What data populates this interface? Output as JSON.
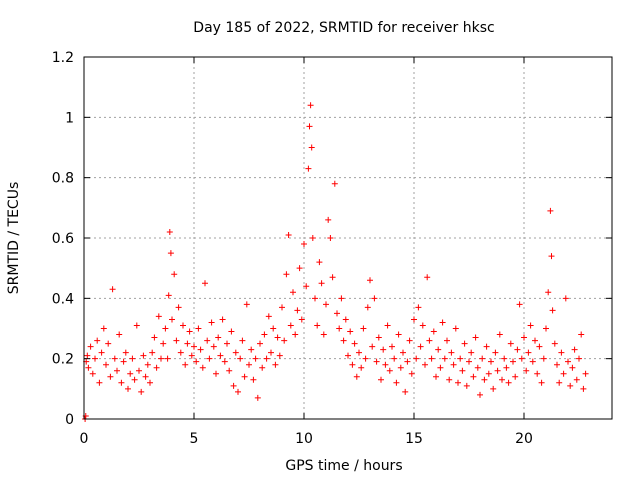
{
  "chart_data": {
    "type": "scatter",
    "title": "Day 185 of 2022, SRMTID for receiver hksc",
    "xlabel": "GPS time / hours",
    "ylabel": "SRMTID / TECUs",
    "xlim": [
      0,
      24
    ],
    "ylim": [
      0,
      1.2
    ],
    "xticks": [
      0,
      5,
      10,
      15,
      20
    ],
    "xtick_labels": [
      "0",
      "5",
      "10",
      "15",
      "20"
    ],
    "yticks": [
      0,
      0.2,
      0.4,
      0.6,
      0.8,
      1.0,
      1.2
    ],
    "ytick_labels": [
      "0",
      "0.2",
      "0.4",
      "0.6",
      "0.8",
      "1",
      "1.2"
    ],
    "grid": true,
    "marker": "plus",
    "series": [
      {
        "name": "SRMTID",
        "color": "#ff0000",
        "points": [
          [
            0.05,
            0.0
          ],
          [
            0.08,
            0.01
          ],
          [
            0.1,
            0.19
          ],
          [
            0.15,
            0.21
          ],
          [
            0.2,
            0.17
          ],
          [
            0.3,
            0.24
          ],
          [
            0.4,
            0.15
          ],
          [
            0.5,
            0.2
          ],
          [
            0.6,
            0.26
          ],
          [
            0.7,
            0.12
          ],
          [
            0.8,
            0.22
          ],
          [
            0.9,
            0.3
          ],
          [
            1.0,
            0.18
          ],
          [
            1.1,
            0.25
          ],
          [
            1.2,
            0.14
          ],
          [
            1.3,
            0.43
          ],
          [
            1.4,
            0.2
          ],
          [
            1.5,
            0.16
          ],
          [
            1.6,
            0.28
          ],
          [
            1.7,
            0.12
          ],
          [
            1.8,
            0.19
          ],
          [
            1.9,
            0.22
          ],
          [
            2.0,
            0.1
          ],
          [
            2.1,
            0.15
          ],
          [
            2.2,
            0.2
          ],
          [
            2.3,
            0.13
          ],
          [
            2.4,
            0.31
          ],
          [
            2.5,
            0.16
          ],
          [
            2.6,
            0.09
          ],
          [
            2.7,
            0.21
          ],
          [
            2.8,
            0.14
          ],
          [
            2.9,
            0.18
          ],
          [
            3.0,
            0.12
          ],
          [
            3.1,
            0.22
          ],
          [
            3.2,
            0.27
          ],
          [
            3.3,
            0.17
          ],
          [
            3.4,
            0.34
          ],
          [
            3.5,
            0.2
          ],
          [
            3.6,
            0.25
          ],
          [
            3.7,
            0.3
          ],
          [
            3.8,
            0.2
          ],
          [
            3.85,
            0.41
          ],
          [
            3.9,
            0.62
          ],
          [
            3.95,
            0.55
          ],
          [
            4.0,
            0.33
          ],
          [
            4.1,
            0.48
          ],
          [
            4.2,
            0.26
          ],
          [
            4.3,
            0.37
          ],
          [
            4.4,
            0.22
          ],
          [
            4.5,
            0.31
          ],
          [
            4.6,
            0.18
          ],
          [
            4.7,
            0.25
          ],
          [
            4.8,
            0.29
          ],
          [
            4.9,
            0.21
          ],
          [
            5.0,
            0.24
          ],
          [
            5.1,
            0.19
          ],
          [
            5.2,
            0.3
          ],
          [
            5.3,
            0.23
          ],
          [
            5.4,
            0.17
          ],
          [
            5.5,
            0.45
          ],
          [
            5.6,
            0.26
          ],
          [
            5.7,
            0.2
          ],
          [
            5.8,
            0.32
          ],
          [
            5.9,
            0.24
          ],
          [
            6.0,
            0.15
          ],
          [
            6.1,
            0.27
          ],
          [
            6.2,
            0.21
          ],
          [
            6.3,
            0.33
          ],
          [
            6.4,
            0.19
          ],
          [
            6.5,
            0.25
          ],
          [
            6.6,
            0.16
          ],
          [
            6.7,
            0.29
          ],
          [
            6.8,
            0.11
          ],
          [
            6.9,
            0.22
          ],
          [
            7.0,
            0.09
          ],
          [
            7.1,
            0.2
          ],
          [
            7.2,
            0.26
          ],
          [
            7.3,
            0.14
          ],
          [
            7.4,
            0.38
          ],
          [
            7.5,
            0.18
          ],
          [
            7.6,
            0.23
          ],
          [
            7.7,
            0.13
          ],
          [
            7.8,
            0.2
          ],
          [
            7.9,
            0.07
          ],
          [
            8.0,
            0.25
          ],
          [
            8.1,
            0.17
          ],
          [
            8.2,
            0.28
          ],
          [
            8.3,
            0.2
          ],
          [
            8.4,
            0.34
          ],
          [
            8.5,
            0.22
          ],
          [
            8.6,
            0.3
          ],
          [
            8.7,
            0.18
          ],
          [
            8.8,
            0.27
          ],
          [
            8.9,
            0.21
          ],
          [
            9.0,
            0.37
          ],
          [
            9.1,
            0.26
          ],
          [
            9.2,
            0.48
          ],
          [
            9.3,
            0.61
          ],
          [
            9.4,
            0.31
          ],
          [
            9.5,
            0.42
          ],
          [
            9.6,
            0.28
          ],
          [
            9.7,
            0.36
          ],
          [
            9.8,
            0.5
          ],
          [
            9.9,
            0.33
          ],
          [
            10.0,
            0.58
          ],
          [
            10.1,
            0.44
          ],
          [
            10.2,
            0.83
          ],
          [
            10.25,
            0.97
          ],
          [
            10.3,
            1.04
          ],
          [
            10.35,
            0.9
          ],
          [
            10.4,
            0.6
          ],
          [
            10.5,
            0.4
          ],
          [
            10.6,
            0.31
          ],
          [
            10.7,
            0.52
          ],
          [
            10.8,
            0.45
          ],
          [
            10.9,
            0.28
          ],
          [
            11.0,
            0.38
          ],
          [
            11.1,
            0.66
          ],
          [
            11.2,
            0.6
          ],
          [
            11.3,
            0.47
          ],
          [
            11.4,
            0.78
          ],
          [
            11.5,
            0.35
          ],
          [
            11.6,
            0.3
          ],
          [
            11.7,
            0.4
          ],
          [
            11.8,
            0.26
          ],
          [
            11.9,
            0.33
          ],
          [
            12.0,
            0.21
          ],
          [
            12.1,
            0.29
          ],
          [
            12.2,
            0.18
          ],
          [
            12.3,
            0.25
          ],
          [
            12.4,
            0.14
          ],
          [
            12.5,
            0.22
          ],
          [
            12.6,
            0.17
          ],
          [
            12.7,
            0.3
          ],
          [
            12.8,
            0.2
          ],
          [
            12.9,
            0.37
          ],
          [
            13.0,
            0.46
          ],
          [
            13.1,
            0.24
          ],
          [
            13.2,
            0.4
          ],
          [
            13.3,
            0.19
          ],
          [
            13.4,
            0.27
          ],
          [
            13.5,
            0.13
          ],
          [
            13.6,
            0.23
          ],
          [
            13.7,
            0.18
          ],
          [
            13.8,
            0.31
          ],
          [
            13.9,
            0.16
          ],
          [
            14.0,
            0.24
          ],
          [
            14.1,
            0.2
          ],
          [
            14.2,
            0.12
          ],
          [
            14.3,
            0.28
          ],
          [
            14.4,
            0.17
          ],
          [
            14.5,
            0.22
          ],
          [
            14.6,
            0.09
          ],
          [
            14.7,
            0.19
          ],
          [
            14.8,
            0.26
          ],
          [
            14.9,
            0.15
          ],
          [
            15.0,
            0.33
          ],
          [
            15.1,
            0.2
          ],
          [
            15.2,
            0.37
          ],
          [
            15.3,
            0.24
          ],
          [
            15.4,
            0.31
          ],
          [
            15.5,
            0.18
          ],
          [
            15.6,
            0.47
          ],
          [
            15.7,
            0.26
          ],
          [
            15.8,
            0.2
          ],
          [
            15.9,
            0.29
          ],
          [
            16.0,
            0.14
          ],
          [
            16.1,
            0.23
          ],
          [
            16.2,
            0.17
          ],
          [
            16.3,
            0.32
          ],
          [
            16.4,
            0.2
          ],
          [
            16.5,
            0.26
          ],
          [
            16.6,
            0.13
          ],
          [
            16.7,
            0.22
          ],
          [
            16.8,
            0.18
          ],
          [
            16.9,
            0.3
          ],
          [
            17.0,
            0.12
          ],
          [
            17.1,
            0.2
          ],
          [
            17.2,
            0.16
          ],
          [
            17.3,
            0.25
          ],
          [
            17.4,
            0.11
          ],
          [
            17.5,
            0.19
          ],
          [
            17.6,
            0.22
          ],
          [
            17.7,
            0.14
          ],
          [
            17.8,
            0.27
          ],
          [
            17.9,
            0.17
          ],
          [
            18.0,
            0.08
          ],
          [
            18.1,
            0.2
          ],
          [
            18.2,
            0.13
          ],
          [
            18.3,
            0.24
          ],
          [
            18.4,
            0.15
          ],
          [
            18.5,
            0.19
          ],
          [
            18.6,
            0.1
          ],
          [
            18.7,
            0.22
          ],
          [
            18.8,
            0.16
          ],
          [
            18.9,
            0.28
          ],
          [
            19.0,
            0.13
          ],
          [
            19.1,
            0.2
          ],
          [
            19.2,
            0.17
          ],
          [
            19.3,
            0.12
          ],
          [
            19.4,
            0.25
          ],
          [
            19.5,
            0.19
          ],
          [
            19.6,
            0.14
          ],
          [
            19.7,
            0.23
          ],
          [
            19.8,
            0.38
          ],
          [
            19.9,
            0.2
          ],
          [
            20.0,
            0.27
          ],
          [
            20.1,
            0.16
          ],
          [
            20.2,
            0.22
          ],
          [
            20.3,
            0.31
          ],
          [
            20.4,
            0.19
          ],
          [
            20.5,
            0.26
          ],
          [
            20.6,
            0.15
          ],
          [
            20.7,
            0.24
          ],
          [
            20.8,
            0.12
          ],
          [
            20.9,
            0.2
          ],
          [
            21.0,
            0.3
          ],
          [
            21.1,
            0.42
          ],
          [
            21.2,
            0.69
          ],
          [
            21.25,
            0.54
          ],
          [
            21.3,
            0.36
          ],
          [
            21.4,
            0.25
          ],
          [
            21.5,
            0.18
          ],
          [
            21.6,
            0.12
          ],
          [
            21.7,
            0.22
          ],
          [
            21.8,
            0.15
          ],
          [
            21.9,
            0.4
          ],
          [
            22.0,
            0.19
          ],
          [
            22.1,
            0.11
          ],
          [
            22.2,
            0.17
          ],
          [
            22.3,
            0.23
          ],
          [
            22.4,
            0.13
          ],
          [
            22.5,
            0.2
          ],
          [
            22.6,
            0.28
          ],
          [
            22.7,
            0.1
          ],
          [
            22.8,
            0.15
          ]
        ]
      }
    ]
  }
}
